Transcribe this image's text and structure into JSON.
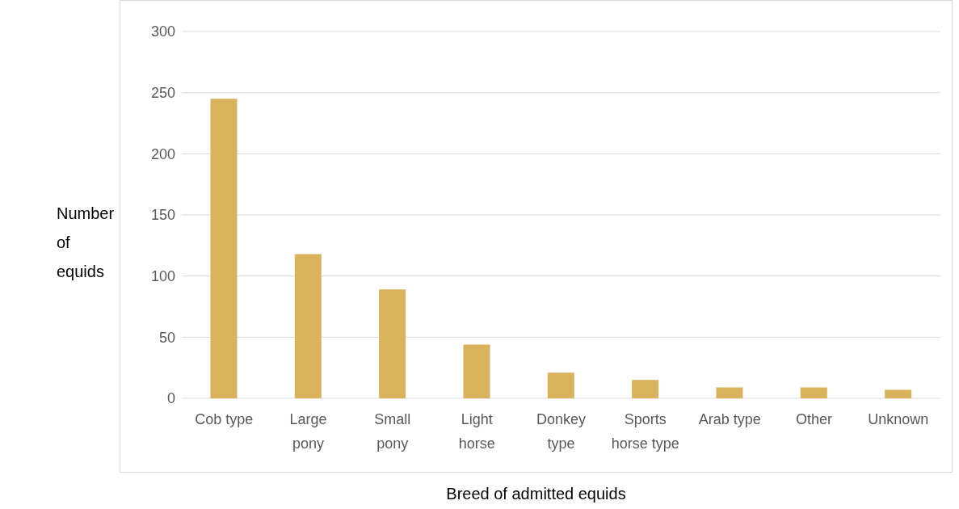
{
  "chart_data": {
    "type": "bar",
    "xlabel": "Breed of admitted equids",
    "ylabel": "Number of equids",
    "categories": [
      "Cob type",
      "Large pony",
      "Small pony",
      "Light horse",
      "Donkey type",
      "Sports horse type",
      "Arab type",
      "Other",
      "Unknown"
    ],
    "values": [
      245,
      118,
      89,
      44,
      21,
      15,
      9,
      9,
      7
    ],
    "color": "#d9b25c",
    "ylim": [
      0,
      300
    ],
    "yticks": [
      0,
      50,
      100,
      150,
      200,
      250,
      300
    ],
    "grid": "y"
  }
}
